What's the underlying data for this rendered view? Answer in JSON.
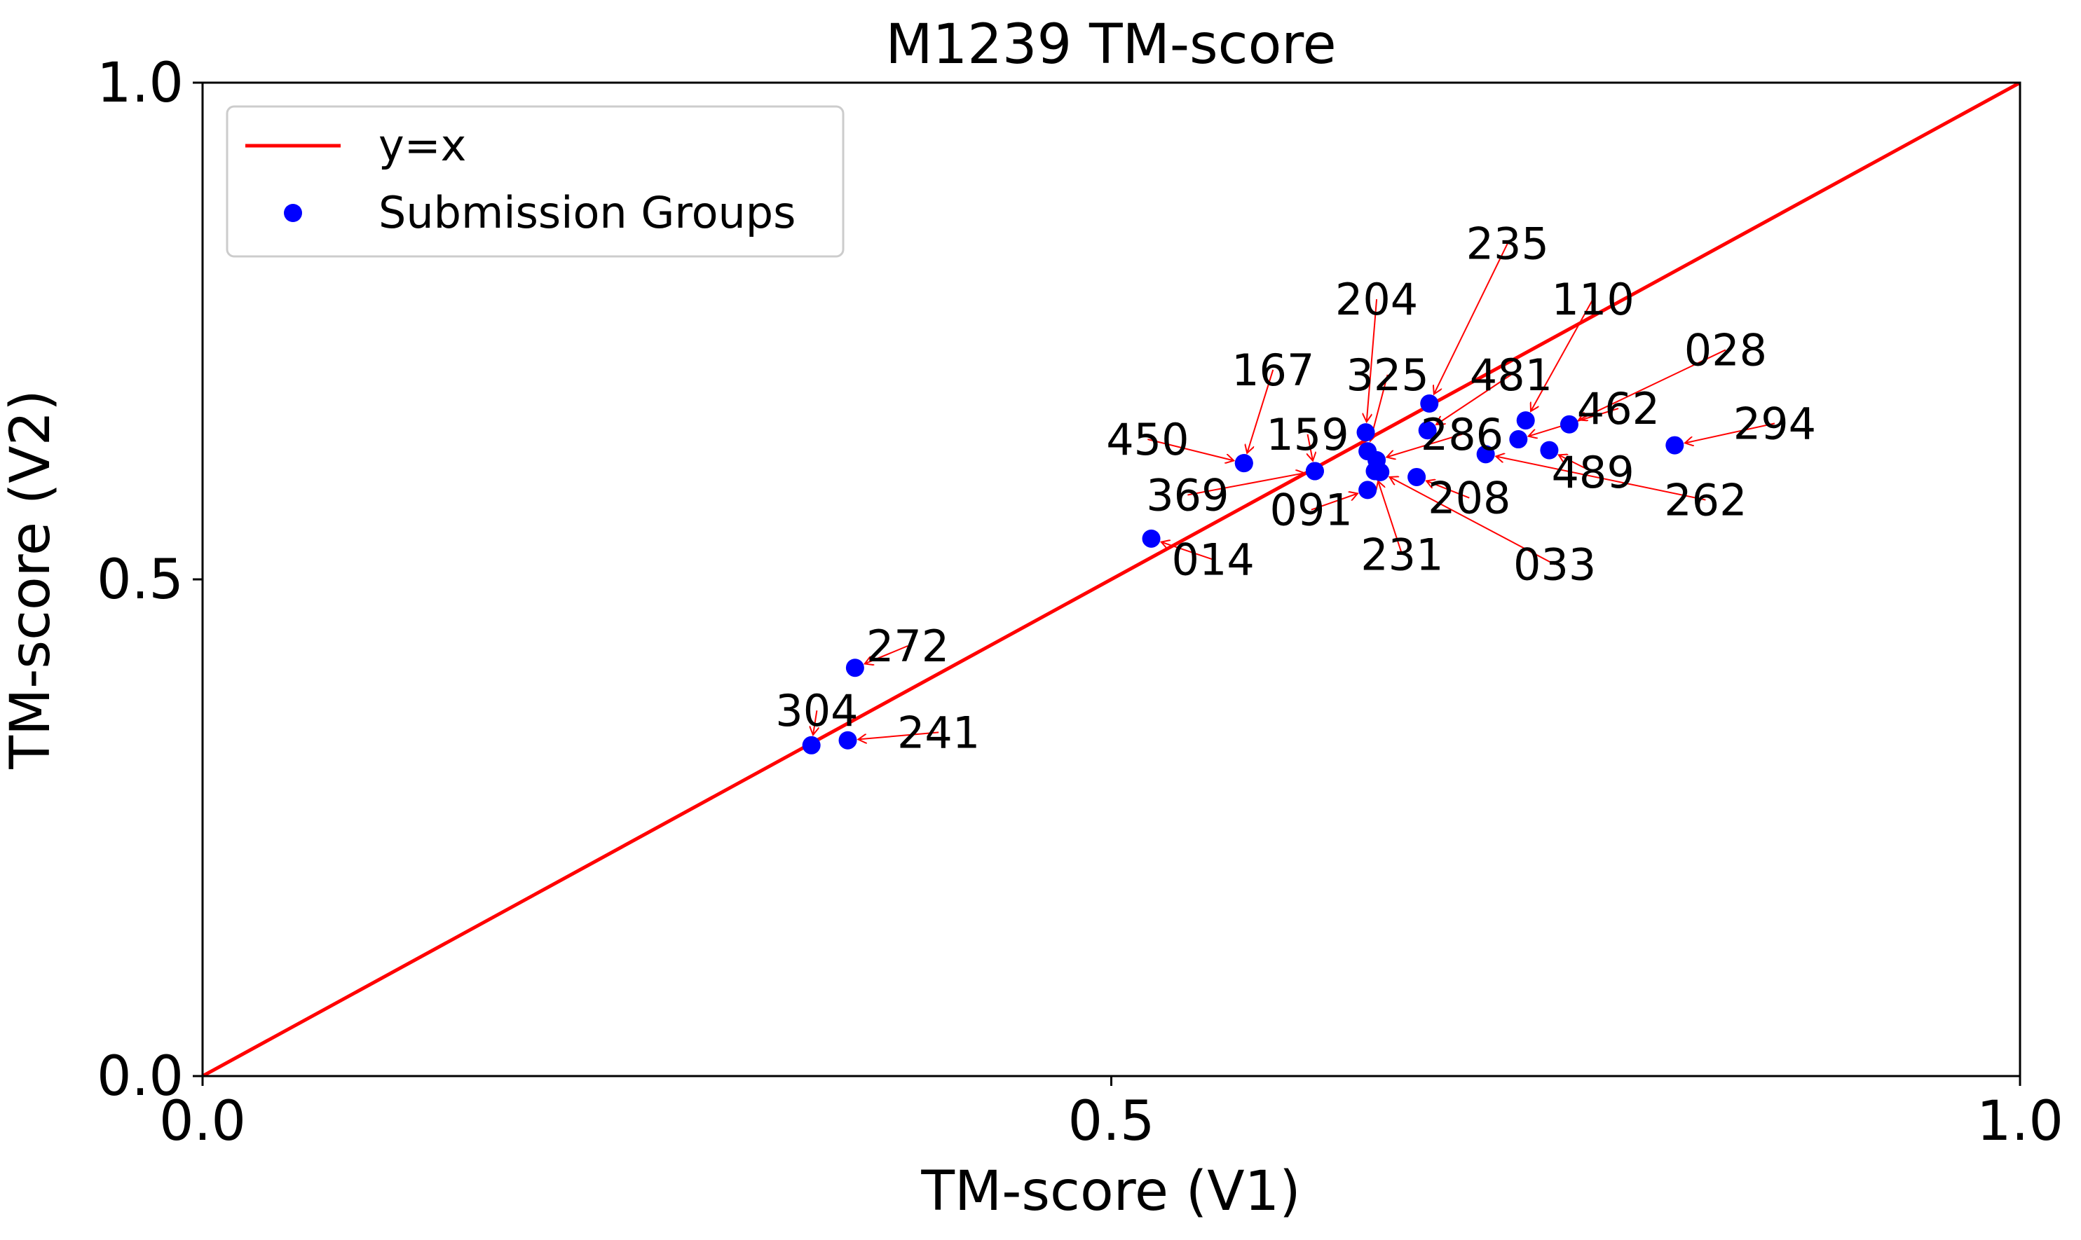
{
  "chart_data": {
    "type": "scatter",
    "title": "M1239 TM-score",
    "xlabel": "TM-score (V1)",
    "ylabel": "TM-score (V2)",
    "xlim": [
      0.0,
      1.0
    ],
    "ylim": [
      0.0,
      1.0
    ],
    "xticks": [
      "0.0",
      "0.5",
      "1.0"
    ],
    "yticks": [
      "0.0",
      "0.5",
      "1.0"
    ],
    "grid": false,
    "legend": {
      "position": "top-left",
      "entries": [
        {
          "label": "y=x",
          "marker": "line",
          "color": "#ff0000"
        },
        {
          "label": "Submission Groups",
          "marker": "dot",
          "color": "#0000ff"
        }
      ]
    },
    "reference_line": {
      "name": "y=x",
      "x": [
        0.0,
        1.0
      ],
      "y": [
        0.0,
        1.0
      ],
      "color": "#ff0000"
    },
    "series": [
      {
        "name": "Submission Groups",
        "color": "#0000ff",
        "annotation_color": "#ff0000",
        "points": [
          {
            "label": "235",
            "x": 0.675,
            "y": 0.677,
            "lx": 0.718,
            "ly": 0.838
          },
          {
            "label": "204",
            "x": 0.64,
            "y": 0.648,
            "lx": 0.646,
            "ly": 0.782
          },
          {
            "label": "110",
            "x": 0.728,
            "y": 0.66,
            "lx": 0.765,
            "ly": 0.782
          },
          {
            "label": "028",
            "x": 0.752,
            "y": 0.656,
            "lx": 0.838,
            "ly": 0.731
          },
          {
            "label": "167",
            "x": 0.573,
            "y": 0.617,
            "lx": 0.589,
            "ly": 0.711
          },
          {
            "label": "325",
            "x": 0.641,
            "y": 0.629,
            "lx": 0.652,
            "ly": 0.706
          },
          {
            "label": "481",
            "x": 0.674,
            "y": 0.65,
            "lx": 0.72,
            "ly": 0.706
          },
          {
            "label": "462",
            "x": 0.724,
            "y": 0.641,
            "lx": 0.779,
            "ly": 0.672
          },
          {
            "label": "294",
            "x": 0.81,
            "y": 0.635,
            "lx": 0.865,
            "ly": 0.657
          },
          {
            "label": "450",
            "x": 0.573,
            "y": 0.617,
            "lx": 0.52,
            "ly": 0.641
          },
          {
            "label": "159",
            "x": 0.612,
            "y": 0.609,
            "lx": 0.608,
            "ly": 0.646
          },
          {
            "label": "286",
            "x": 0.646,
            "y": 0.62,
            "lx": 0.693,
            "ly": 0.646
          },
          {
            "label": "489",
            "x": 0.741,
            "y": 0.63,
            "lx": 0.765,
            "ly": 0.608
          },
          {
            "label": "262",
            "x": 0.706,
            "y": 0.626,
            "lx": 0.827,
            "ly": 0.58
          },
          {
            "label": "208",
            "x": 0.668,
            "y": 0.603,
            "lx": 0.697,
            "ly": 0.582
          },
          {
            "label": "369",
            "x": 0.612,
            "y": 0.609,
            "lx": 0.542,
            "ly": 0.585
          },
          {
            "label": "091",
            "x": 0.641,
            "y": 0.59,
            "lx": 0.61,
            "ly": 0.57
          },
          {
            "label": "231",
            "x": 0.645,
            "y": 0.609,
            "lx": 0.66,
            "ly": 0.525
          },
          {
            "label": "033",
            "x": 0.648,
            "y": 0.608,
            "lx": 0.744,
            "ly": 0.515
          },
          {
            "label": "014",
            "x": 0.522,
            "y": 0.541,
            "lx": 0.556,
            "ly": 0.52
          },
          {
            "label": "272",
            "x": 0.359,
            "y": 0.411,
            "lx": 0.388,
            "ly": 0.433
          },
          {
            "label": "304",
            "x": 0.335,
            "y": 0.333,
            "lx": 0.338,
            "ly": 0.368
          },
          {
            "label": "241",
            "x": 0.355,
            "y": 0.338,
            "lx": 0.405,
            "ly": 0.346
          }
        ]
      }
    ]
  }
}
